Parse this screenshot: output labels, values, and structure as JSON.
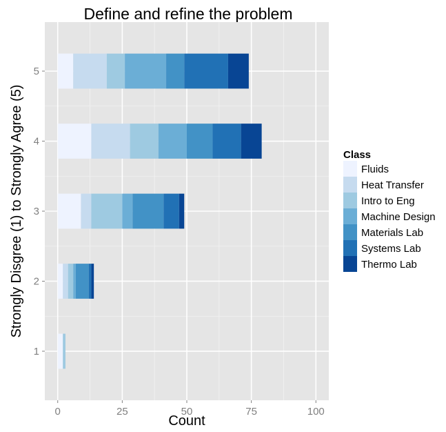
{
  "chart_data": {
    "type": "bar",
    "orientation": "horizontal",
    "stacked": true,
    "title": "Define and refine the problem",
    "xlabel": "Count",
    "ylabel": "Strongly Disgree (1) to Strongly Agree (5)",
    "xlim": [
      -5,
      105
    ],
    "ylim": [
      0.3,
      5.7
    ],
    "xticks": [
      0,
      25,
      50,
      75,
      100
    ],
    "categories": [
      1,
      2,
      3,
      4,
      5
    ],
    "grid": true,
    "legend": {
      "title": "Class",
      "position": "right"
    },
    "series": [
      {
        "name": "Fluids",
        "color": "#eef3ff",
        "values": [
          2,
          2,
          9,
          13,
          6
        ]
      },
      {
        "name": "Heat Transfer",
        "color": "#c6dbef",
        "values": [
          0,
          2,
          4,
          15,
          13
        ]
      },
      {
        "name": "Intro to Eng",
        "color": "#9ecae1",
        "values": [
          1,
          2,
          12,
          11,
          7
        ]
      },
      {
        "name": "Machine Design",
        "color": "#6baed6",
        "values": [
          0,
          1,
          4,
          11,
          16
        ]
      },
      {
        "name": "Materials Lab",
        "color": "#4292c6",
        "values": [
          0,
          5,
          12,
          10,
          7
        ]
      },
      {
        "name": "Systems Lab",
        "color": "#2171b5",
        "values": [
          0,
          1,
          6,
          11,
          17
        ]
      },
      {
        "name": "Thermo Lab",
        "color": "#084594",
        "values": [
          0,
          1,
          2,
          8,
          8
        ]
      }
    ]
  },
  "colors": {
    "panel_background": "#e5e5e5",
    "grid_major": "#ffffff",
    "grid_minor": "#f2f2f2",
    "tick_label": "#7f7f7f"
  }
}
